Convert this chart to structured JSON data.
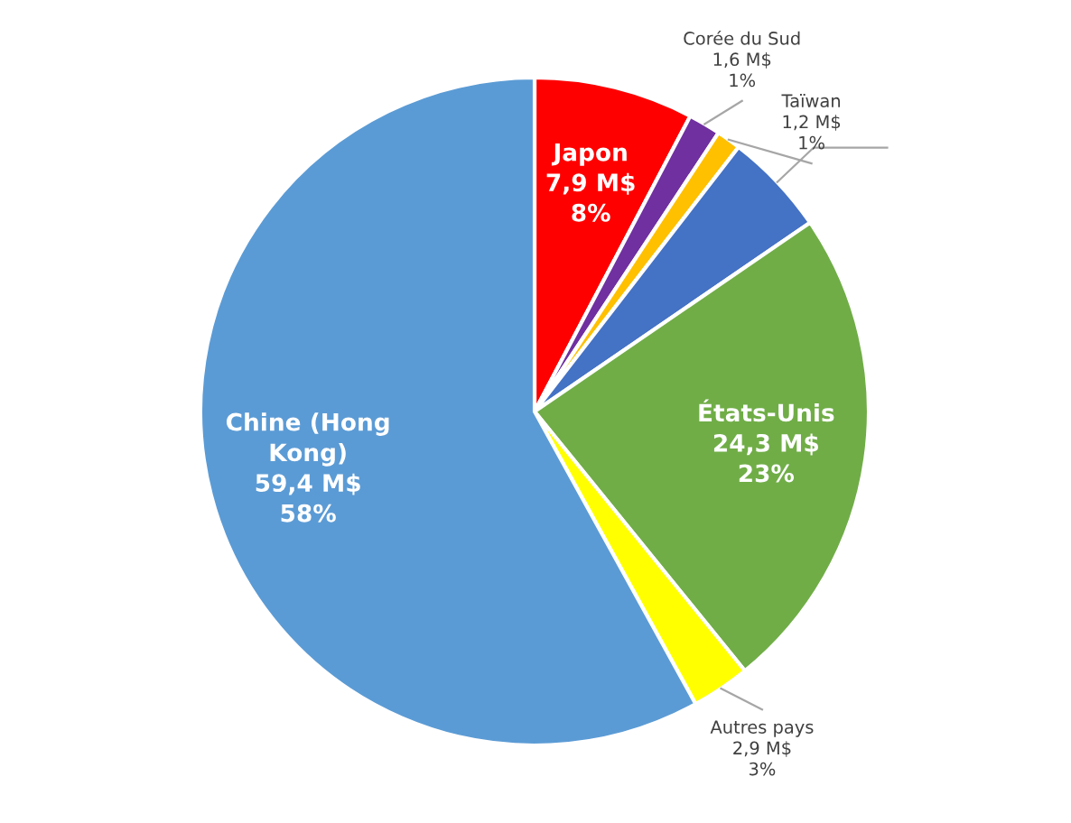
{
  "chart_data": {
    "type": "pie",
    "categories": [
      "Japon",
      "Corée du Sud",
      "Taïwan",
      null,
      "États-Unis",
      "Autres pays",
      "Chine (Hong Kong)"
    ],
    "values": [
      7.9,
      1.6,
      1.2,
      5.1,
      24.3,
      2.9,
      59.4
    ],
    "value_labels": [
      "7,9 M$\n8%",
      "1,6 M$\n1%",
      "1,2 M$\n1%",
      null,
      "24,3 M$\n23%",
      "2,9 M$\n3%",
      "59,4 M$\n58%"
    ],
    "colors": [
      "#ff0000",
      "#7030a0",
      "#ffc000",
      "#4472c4",
      "#70ad47",
      "#ffff00",
      "#5b9bd5"
    ]
  }
}
